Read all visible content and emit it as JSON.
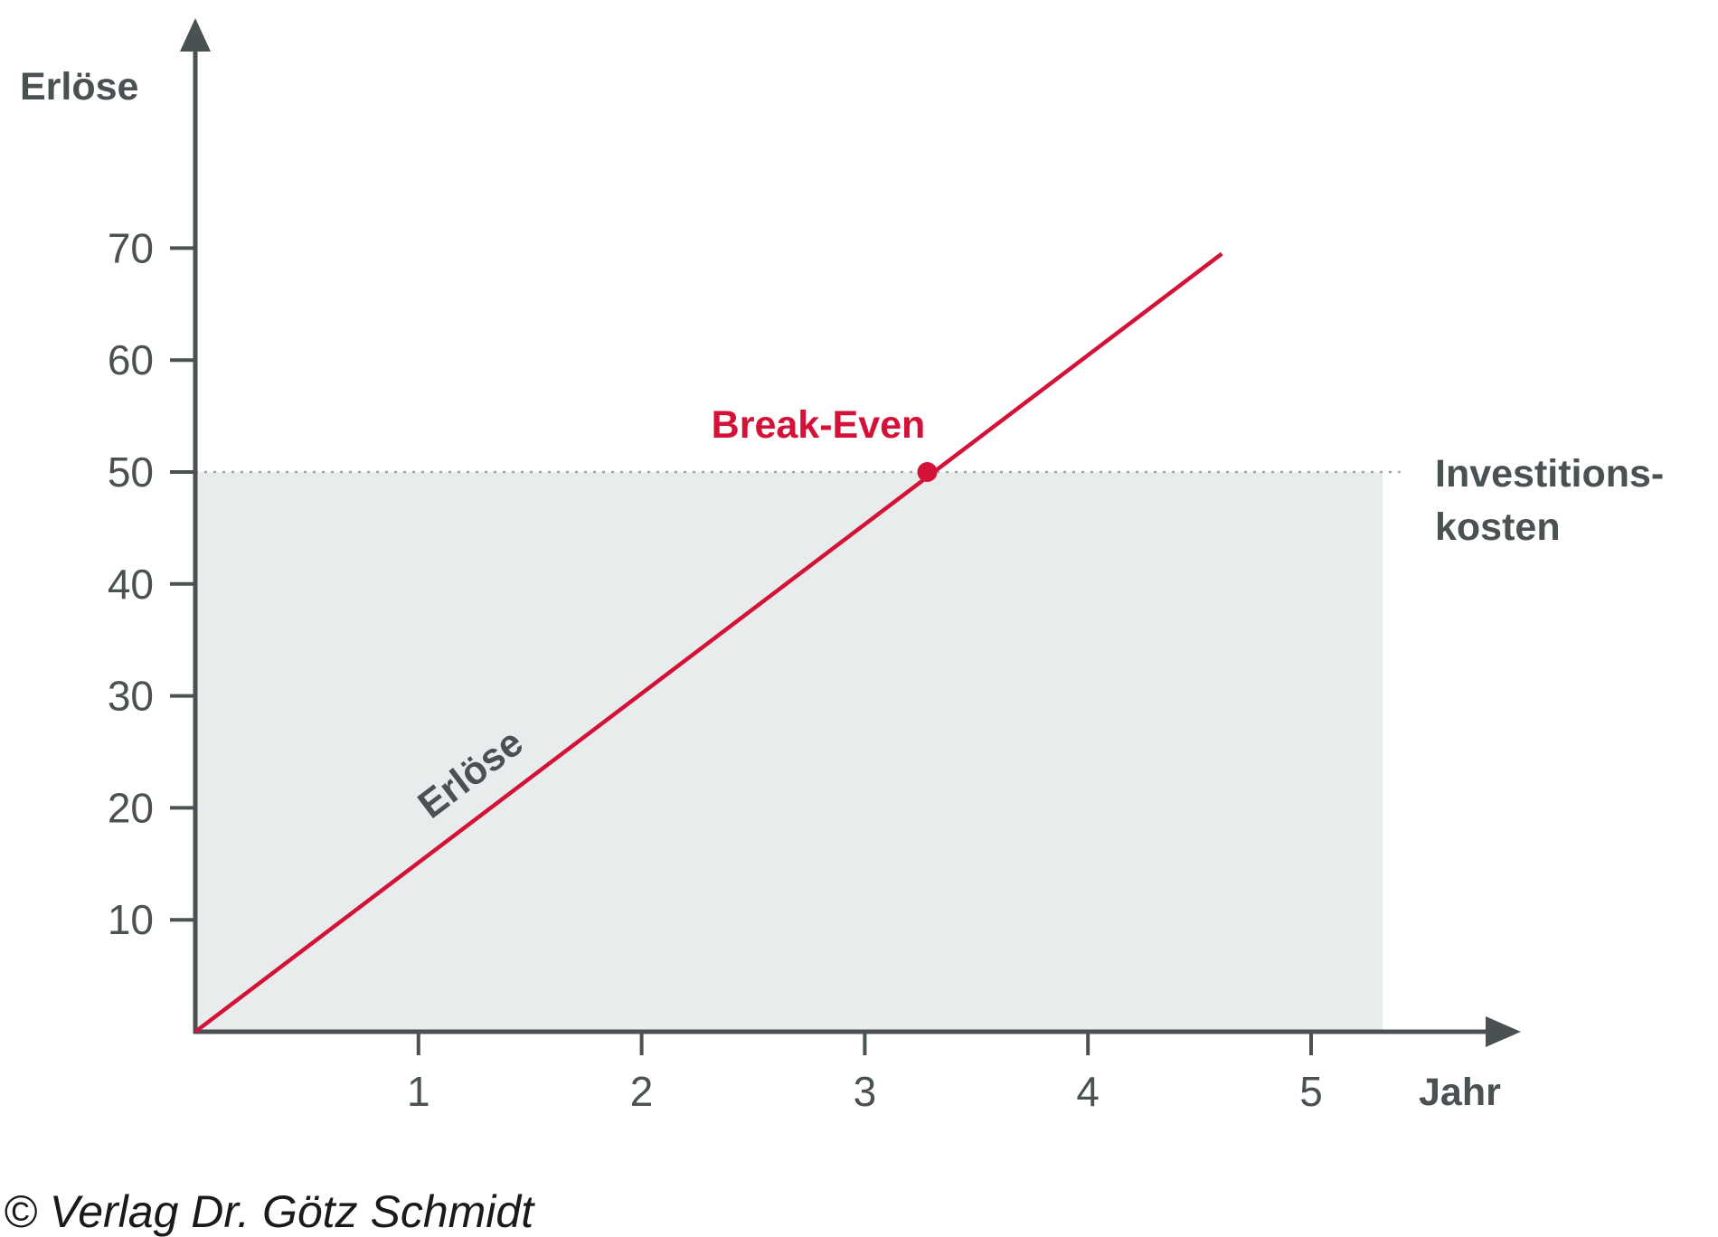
{
  "chart_data": {
    "type": "line",
    "ylabel": "Erlöse",
    "xlabel": "Jahr",
    "x_ticks": [
      "1",
      "2",
      "3",
      "4",
      "5"
    ],
    "y_ticks": [
      "10",
      "20",
      "30",
      "40",
      "50",
      "60",
      "70"
    ],
    "xlim": [
      0,
      5.9
    ],
    "ylim": [
      0,
      87
    ],
    "series": [
      {
        "name": "Erlöse",
        "x": [
          0,
          4.6
        ],
        "y": [
          0,
          69.5
        ]
      }
    ],
    "investment_costs": {
      "label_line1": "Investitions-",
      "label_line2": "kosten",
      "value": 50,
      "x_end": 5.32
    },
    "break_even": {
      "label": "Break-Even",
      "x": 3.28,
      "y": 50
    },
    "grid": false,
    "colors": {
      "axis": "#4a5152",
      "series": "#d41238",
      "area": "#e9ecec",
      "dotted_line": "#a0a6a6"
    }
  },
  "copyright": "© Verlag Dr. Götz Schmidt"
}
